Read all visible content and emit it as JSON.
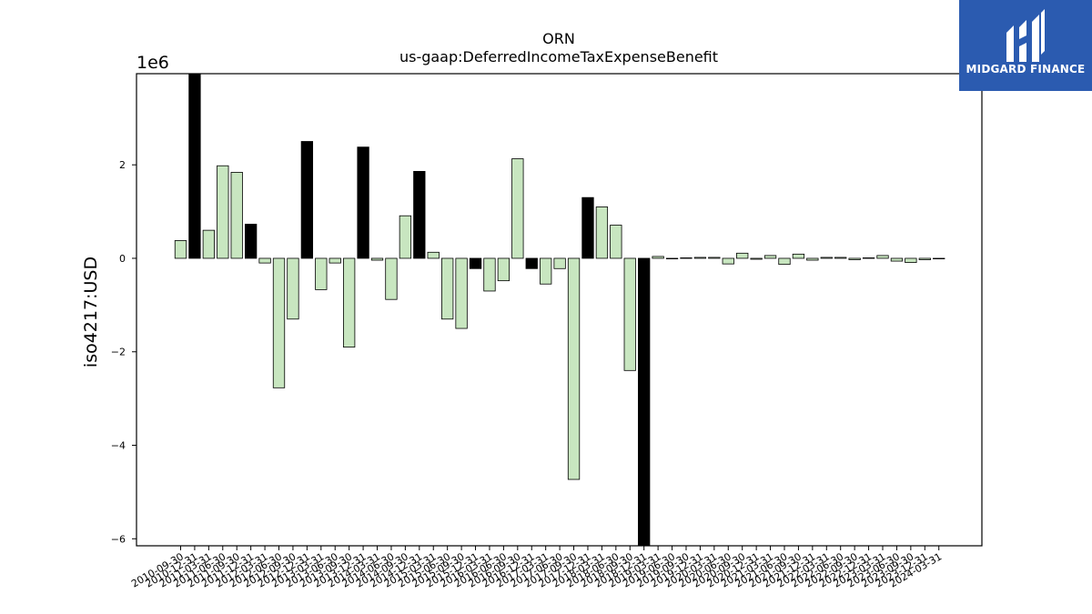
{
  "chart_data": {
    "type": "bar",
    "title": "ORN",
    "subtitle": "us-gaap:DeferredIncomeTaxExpenseBenefit",
    "ylabel": "iso4217:USD",
    "xlabel": "",
    "y_scale_label": "1e6",
    "ylim": [
      -6.15,
      3.95
    ],
    "yticks": [
      -6,
      -4,
      -2,
      0,
      2
    ],
    "ytick_labels": [
      "−6",
      "−4",
      "−2",
      "0",
      "2"
    ],
    "grid": false,
    "colors": {
      "light": "#c8e6c0",
      "dark": "#000000",
      "edge": "#000000"
    },
    "categories": [
      "2010-09-30",
      "2010-12-31",
      "2011-03-31",
      "2011-06-30",
      "2011-09-30",
      "2011-12-31",
      "2012-03-31",
      "2012-06-30",
      "2012-09-30",
      "2012-12-31",
      "2013-03-31",
      "2013-06-30",
      "2013-09-30",
      "2013-12-31",
      "2014-03-31",
      "2014-06-30",
      "2014-09-30",
      "2014-12-31",
      "2015-03-31",
      "2015-06-30",
      "2015-09-30",
      "2015-12-31",
      "2016-03-31",
      "2016-06-30",
      "2016-09-30",
      "2016-12-31",
      "2017-03-31",
      "2017-06-30",
      "2017-09-30",
      "2017-12-31",
      "2018-03-31",
      "2018-06-30",
      "2018-09-30",
      "2018-12-31",
      "2019-03-31",
      "2019-06-30",
      "2019-09-30",
      "2019-12-31",
      "2020-03-31",
      "2020-06-30",
      "2020-09-30",
      "2020-12-31",
      "2021-03-31",
      "2021-06-30",
      "2021-09-30",
      "2021-12-31",
      "2022-03-31",
      "2022-06-30",
      "2022-09-30",
      "2022-12-31",
      "2023-03-31",
      "2023-06-30",
      "2023-09-30",
      "2023-12-31",
      "2024-03-31"
    ],
    "values": [
      0.38,
      3.95,
      0.6,
      1.98,
      1.84,
      0.73,
      -0.1,
      -2.77,
      -1.3,
      2.5,
      -0.67,
      -0.1,
      -1.9,
      2.38,
      -0.04,
      -0.88,
      0.91,
      1.86,
      0.13,
      -1.3,
      -1.5,
      -0.22,
      -0.7,
      -0.48,
      2.13,
      -0.22,
      -0.55,
      -0.22,
      -4.73,
      1.3,
      1.1,
      0.71,
      -2.4,
      -6.15,
      0.04,
      -0.01,
      0.01,
      0.02,
      0.02,
      -0.12,
      0.11,
      -0.02,
      0.06,
      -0.13,
      0.09,
      -0.04,
      0.02,
      0.02,
      -0.03,
      0.01,
      0.06,
      -0.06,
      -0.09,
      -0.03,
      -0.01
    ],
    "highlight": [
      false,
      true,
      false,
      false,
      false,
      true,
      false,
      false,
      false,
      true,
      false,
      false,
      false,
      true,
      false,
      false,
      false,
      true,
      false,
      false,
      false,
      true,
      false,
      false,
      false,
      true,
      false,
      false,
      false,
      true,
      false,
      false,
      false,
      true,
      false,
      false,
      false,
      false,
      false,
      false,
      false,
      false,
      false,
      false,
      false,
      false,
      false,
      false,
      false,
      false,
      false,
      false,
      false,
      false,
      false
    ]
  },
  "logo": {
    "name": "MIDGARD FINANCE",
    "icon": "midgard-logo-icon"
  }
}
